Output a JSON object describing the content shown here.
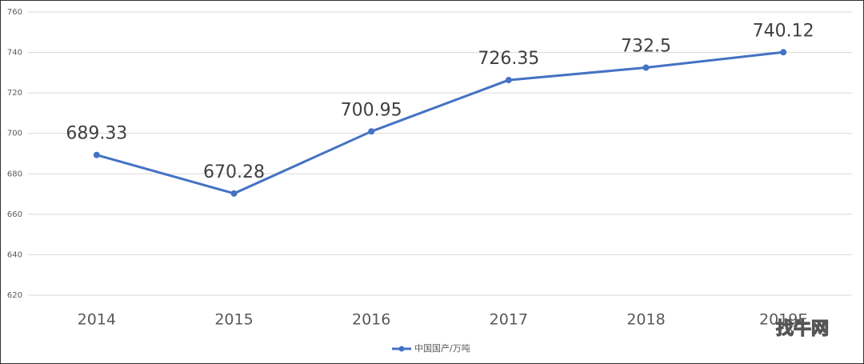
{
  "chart_data": {
    "type": "line",
    "categories": [
      "2014",
      "2015",
      "2016",
      "2017",
      "2018",
      "2019E"
    ],
    "series": [
      {
        "name": "中国国产/万吨",
        "color": "#4472c4",
        "values": [
          689.33,
          670.28,
          700.95,
          726.35,
          732.5,
          740.12
        ]
      }
    ],
    "ylim": [
      620,
      760
    ],
    "yticks": [
      620,
      640,
      660,
      680,
      700,
      720,
      740,
      760
    ],
    "grid": true,
    "legend": "bottom",
    "watermark": "找牛网"
  }
}
